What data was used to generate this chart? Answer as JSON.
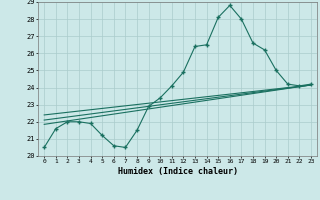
{
  "xlabel": "Humidex (Indice chaleur)",
  "bg_color": "#cce8e8",
  "grid_color": "#aacccc",
  "line_color": "#1a7060",
  "xlim": [
    -0.5,
    23.5
  ],
  "ylim": [
    20.0,
    29.0
  ],
  "yticks": [
    20,
    21,
    22,
    23,
    24,
    25,
    26,
    27,
    28,
    29
  ],
  "xticks": [
    0,
    1,
    2,
    3,
    4,
    5,
    6,
    7,
    8,
    9,
    10,
    11,
    12,
    13,
    14,
    15,
    16,
    17,
    18,
    19,
    20,
    21,
    22,
    23
  ],
  "series1_x": [
    0,
    1,
    2,
    3,
    4,
    5,
    6,
    7,
    8,
    9,
    10,
    11,
    12,
    13,
    14,
    15,
    16,
    17,
    18,
    19,
    20,
    21,
    22,
    23
  ],
  "series1_y": [
    20.5,
    21.6,
    22.0,
    22.0,
    21.9,
    21.2,
    20.6,
    20.5,
    21.5,
    22.9,
    23.4,
    24.1,
    24.9,
    26.4,
    26.5,
    28.1,
    28.8,
    28.0,
    26.6,
    26.2,
    25.0,
    24.2,
    24.1,
    24.2
  ],
  "series2_x": [
    0,
    23
  ],
  "series2_y": [
    21.85,
    24.15
  ],
  "series3_x": [
    0,
    23
  ],
  "series3_y": [
    22.1,
    24.15
  ],
  "series4_x": [
    0,
    23
  ],
  "series4_y": [
    22.4,
    24.15
  ]
}
